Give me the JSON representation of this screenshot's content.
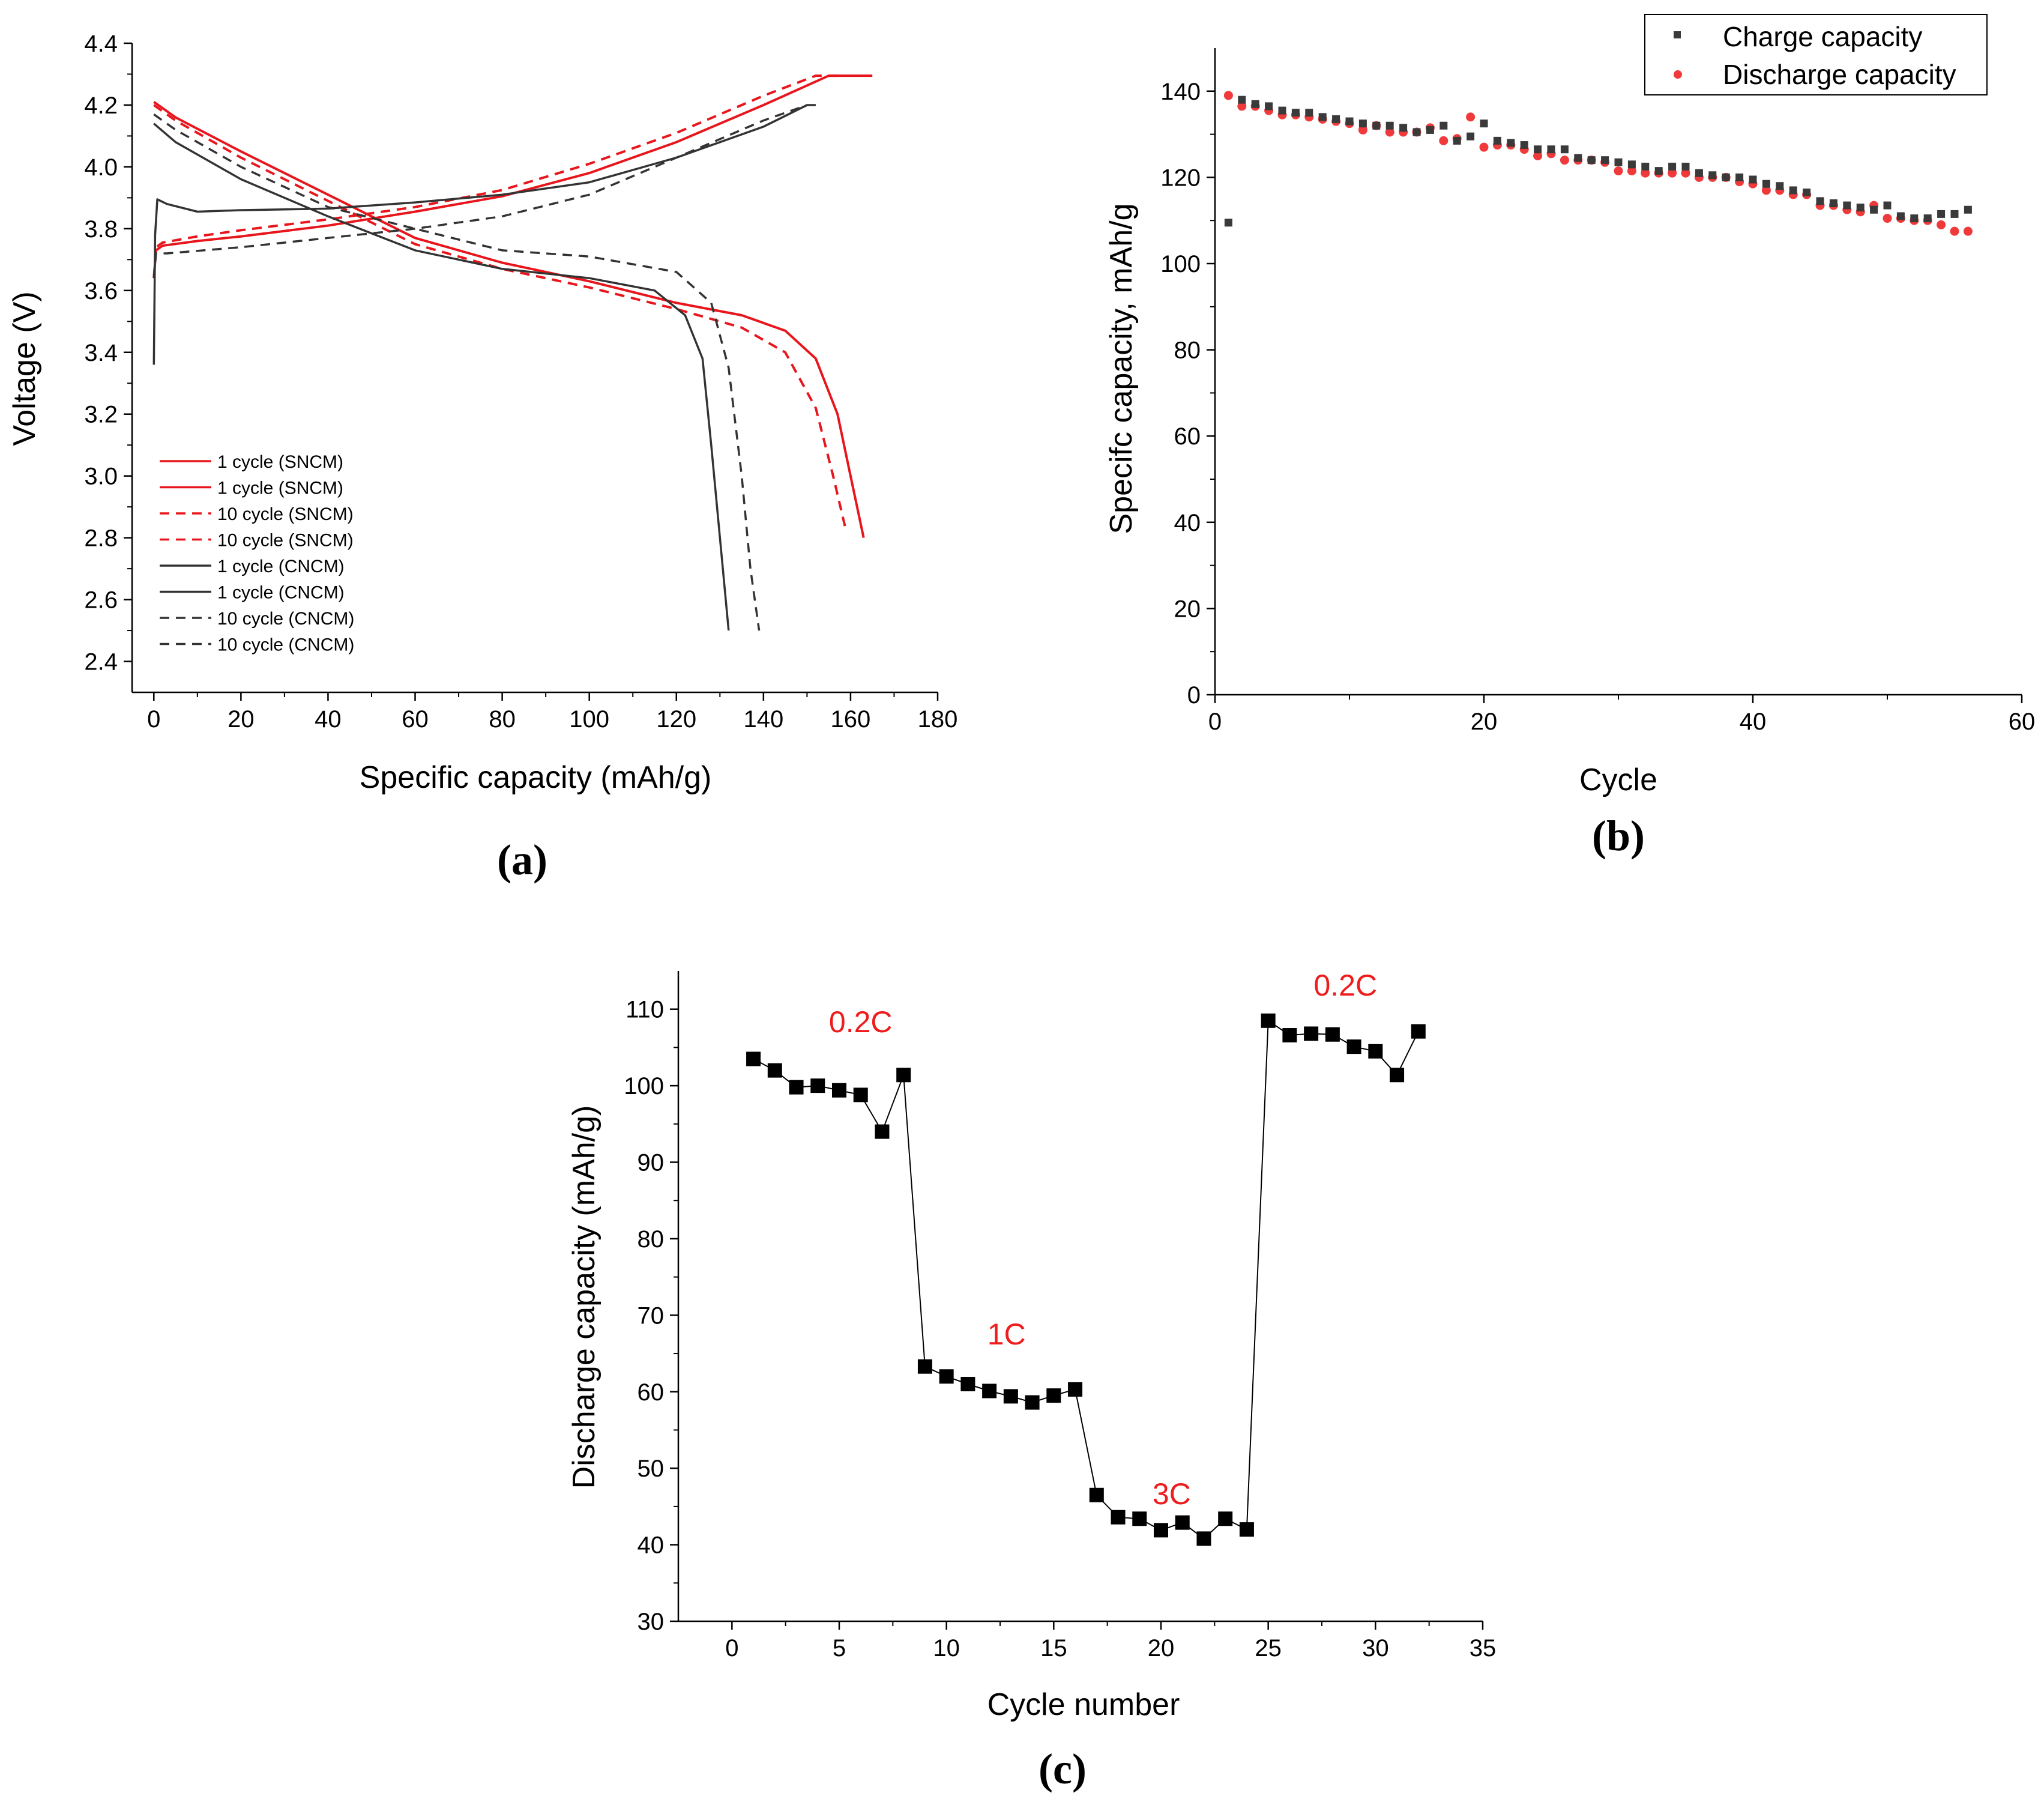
{
  "chart_data": [
    {
      "panel": "(a)",
      "type": "line",
      "xlabel": "Specific capacity (mAh/g)",
      "ylabel": "Voltage (V)",
      "xlim": [
        -5,
        180
      ],
      "ylim": [
        2.3,
        4.4
      ],
      "xticks": [
        0,
        20,
        40,
        60,
        80,
        100,
        120,
        140,
        160,
        180
      ],
      "xtick_labels": [
        "0",
        "20",
        "40",
        "60",
        "80",
        "100",
        "120",
        "140",
        "160",
        "180"
      ],
      "yticks": [
        2.4,
        2.6,
        2.8,
        3.0,
        3.2,
        3.4,
        3.6,
        3.8,
        4.0,
        4.2,
        4.4
      ],
      "ytick_labels": [
        "2.4",
        "2.6",
        "2.8",
        "3.0",
        "3.2",
        "3.4",
        "3.6",
        "3.8",
        "4.0",
        "4.2",
        "4.4"
      ],
      "legend": [
        {
          "label": "1 cycle (SNCM)",
          "color": "#e8161c",
          "dash": "solid"
        },
        {
          "label": "1 cycle (SNCM)",
          "color": "#e8161c",
          "dash": "solid"
        },
        {
          "label": "10 cycle (SNCM)",
          "color": "#e8161c",
          "dash": "dashed"
        },
        {
          "label": "10 cycle (SNCM)",
          "color": "#e8161c",
          "dash": "dashed"
        },
        {
          "label": "1 cycle (CNCM)",
          "color": "#333333",
          "dash": "solid"
        },
        {
          "label": "1 cycle (CNCM)",
          "color": "#333333",
          "dash": "solid"
        },
        {
          "label": "10 cycle (CNCM)",
          "color": "#333333",
          "dash": "dashed"
        },
        {
          "label": "10 cycle (CNCM)",
          "color": "#333333",
          "dash": "dashed"
        }
      ],
      "series": [
        {
          "name": "1 cycle (SNCM) charge",
          "color": "#e8161c",
          "dash": "solid",
          "points": [
            [
              0,
              3.64
            ],
            [
              0.5,
              3.73
            ],
            [
              2,
              3.745
            ],
            [
              10,
              3.76
            ],
            [
              20,
              3.775
            ],
            [
              40,
              3.81
            ],
            [
              60,
              3.855
            ],
            [
              80,
              3.905
            ],
            [
              100,
              3.98
            ],
            [
              120,
              4.08
            ],
            [
              140,
              4.2
            ],
            [
              155,
              4.295
            ],
            [
              165,
              4.295
            ]
          ]
        },
        {
          "name": "1 cycle (SNCM) discharge",
          "color": "#e8161c",
          "dash": "solid",
          "points": [
            [
              0,
              4.21
            ],
            [
              5,
              4.16
            ],
            [
              20,
              4.05
            ],
            [
              40,
              3.91
            ],
            [
              60,
              3.77
            ],
            [
              80,
              3.69
            ],
            [
              100,
              3.63
            ],
            [
              120,
              3.56
            ],
            [
              135,
              3.52
            ],
            [
              145,
              3.47
            ],
            [
              152,
              3.38
            ],
            [
              157,
              3.2
            ],
            [
              160,
              3.0
            ],
            [
              163,
              2.8
            ]
          ]
        },
        {
          "name": "10 cycle (SNCM) charge",
          "color": "#e8161c",
          "dash": "dashed",
          "points": [
            [
              0,
              3.64
            ],
            [
              0.5,
              3.74
            ],
            [
              2,
              3.755
            ],
            [
              10,
              3.775
            ],
            [
              20,
              3.795
            ],
            [
              40,
              3.83
            ],
            [
              60,
              3.87
            ],
            [
              80,
              3.925
            ],
            [
              100,
              4.01
            ],
            [
              120,
              4.11
            ],
            [
              140,
              4.23
            ],
            [
              152,
              4.295
            ],
            [
              157,
              4.295
            ]
          ]
        },
        {
          "name": "10 cycle (SNCM) discharge",
          "color": "#e8161c",
          "dash": "dashed",
          "points": [
            [
              0,
              4.2
            ],
            [
              5,
              4.15
            ],
            [
              20,
              4.03
            ],
            [
              40,
              3.89
            ],
            [
              60,
              3.75
            ],
            [
              80,
              3.67
            ],
            [
              100,
              3.61
            ],
            [
              120,
              3.54
            ],
            [
              135,
              3.48
            ],
            [
              145,
              3.4
            ],
            [
              152,
              3.22
            ],
            [
              156,
              3.0
            ],
            [
              159,
              2.82
            ]
          ]
        },
        {
          "name": "1 cycle (CNCM) charge",
          "color": "#333333",
          "dash": "solid",
          "points": [
            [
              0,
              3.36
            ],
            [
              0.3,
              3.78
            ],
            [
              0.8,
              3.895
            ],
            [
              3,
              3.88
            ],
            [
              10,
              3.855
            ],
            [
              20,
              3.86
            ],
            [
              40,
              3.865
            ],
            [
              60,
              3.885
            ],
            [
              80,
              3.91
            ],
            [
              100,
              3.95
            ],
            [
              120,
              4.03
            ],
            [
              140,
              4.13
            ],
            [
              150,
              4.2
            ],
            [
              152,
              4.2
            ]
          ]
        },
        {
          "name": "1 cycle (CNCM) discharge",
          "color": "#333333",
          "dash": "solid",
          "points": [
            [
              0,
              4.14
            ],
            [
              5,
              4.08
            ],
            [
              20,
              3.96
            ],
            [
              40,
              3.84
            ],
            [
              60,
              3.73
            ],
            [
              80,
              3.67
            ],
            [
              100,
              3.64
            ],
            [
              115,
              3.6
            ],
            [
              122,
              3.52
            ],
            [
              126,
              3.38
            ],
            [
              128,
              3.1
            ],
            [
              130,
              2.8
            ],
            [
              132,
              2.5
            ]
          ]
        },
        {
          "name": "10 cycle (CNCM) charge",
          "color": "#333333",
          "dash": "dashed",
          "points": [
            [
              0,
              3.64
            ],
            [
              0.5,
              3.72
            ],
            [
              3,
              3.72
            ],
            [
              20,
              3.74
            ],
            [
              40,
              3.77
            ],
            [
              60,
              3.8
            ],
            [
              80,
              3.84
            ],
            [
              100,
              3.91
            ],
            [
              120,
              4.03
            ],
            [
              140,
              4.15
            ],
            [
              150,
              4.2
            ]
          ]
        },
        {
          "name": "10 cycle (CNCM) discharge",
          "color": "#333333",
          "dash": "dashed",
          "points": [
            [
              0,
              4.17
            ],
            [
              5,
              4.12
            ],
            [
              20,
              4.0
            ],
            [
              40,
              3.87
            ],
            [
              60,
              3.8
            ],
            [
              80,
              3.73
            ],
            [
              100,
              3.71
            ],
            [
              120,
              3.66
            ],
            [
              128,
              3.56
            ],
            [
              132,
              3.35
            ],
            [
              135,
              3.0
            ],
            [
              137,
              2.7
            ],
            [
              139,
              2.5
            ]
          ]
        }
      ]
    },
    {
      "panel": "(b)",
      "type": "scatter",
      "xlabel": "Cycle",
      "ylabel": "Specifc capacity, mAh/g",
      "xlim": [
        0,
        60
      ],
      "ylim": [
        0,
        150
      ],
      "xticks": [
        0,
        20,
        40,
        60
      ],
      "xtick_labels": [
        "0",
        "20",
        "40",
        "60"
      ],
      "yticks": [
        0,
        20,
        40,
        60,
        80,
        100,
        120,
        140
      ],
      "ytick_labels": [
        "0",
        "20",
        "40",
        "60",
        "80",
        "100",
        "120",
        "140"
      ],
      "x": [
        1,
        2,
        3,
        4,
        5,
        6,
        7,
        8,
        9,
        10,
        11,
        12,
        13,
        14,
        15,
        16,
        17,
        18,
        19,
        20,
        21,
        22,
        23,
        24,
        25,
        26,
        27,
        28,
        29,
        30,
        31,
        32,
        33,
        34,
        35,
        36,
        37,
        38,
        39,
        40,
        41,
        42,
        43,
        44,
        45,
        46,
        47,
        48,
        49,
        50,
        51,
        52,
        53,
        54,
        55,
        56
      ],
      "series": [
        {
          "name": "Charge capacity",
          "marker": "square",
          "color": "#3a3a3a",
          "values": [
            109.5,
            138,
            137,
            136.5,
            135.5,
            135,
            135,
            134,
            133.5,
            133,
            132.5,
            132,
            132,
            131.5,
            130.5,
            131,
            132,
            128.5,
            129.5,
            132.5,
            128.5,
            128,
            127.5,
            126.5,
            126.5,
            126.5,
            124.5,
            124,
            124,
            123.5,
            123,
            122.5,
            121.5,
            122.5,
            122.5,
            121,
            120.5,
            120,
            120,
            119.5,
            118.5,
            118,
            117,
            116.5,
            114.5,
            114,
            113.5,
            113,
            112.5,
            113.5,
            111,
            110.5,
            110.5,
            111.5,
            111.5,
            112.5
          ]
        },
        {
          "name": "Discharge capacity",
          "marker": "circle",
          "color": "#f0393a",
          "values": [
            139,
            136.5,
            136.5,
            135.5,
            134.5,
            134.5,
            134,
            133.5,
            133,
            132.5,
            131,
            132,
            130.5,
            130.5,
            130.5,
            131.5,
            128.5,
            129,
            134,
            127,
            127.5,
            127.5,
            126.5,
            125,
            125.5,
            124,
            124,
            124,
            123.5,
            121.5,
            121.5,
            121,
            121,
            121,
            121,
            120,
            120,
            120,
            119,
            118.5,
            117,
            117,
            116,
            116,
            113.5,
            113.5,
            112.5,
            112,
            113.5,
            110.5,
            110.5,
            110,
            110,
            109,
            107.5,
            107.5
          ]
        }
      ],
      "legend": [
        "Charge capacity",
        "Discharge capacity"
      ]
    },
    {
      "panel": "(c)",
      "type": "line",
      "xlabel": "Cycle number",
      "ylabel": "Discharge capacity (mAh/g)",
      "xlim": [
        -2.5,
        35
      ],
      "ylim": [
        30,
        115
      ],
      "xticks": [
        0,
        5,
        10,
        15,
        20,
        25,
        30,
        35
      ],
      "xtick_labels": [
        "0",
        "5",
        "10",
        "15",
        "20",
        "25",
        "30",
        "35"
      ],
      "yticks": [
        30,
        40,
        50,
        60,
        70,
        80,
        90,
        100,
        110
      ],
      "ytick_labels": [
        "30",
        "40",
        "50",
        "60",
        "70",
        "80",
        "90",
        "100",
        "110"
      ],
      "series": [
        {
          "name": "Discharge capacity",
          "marker": "square",
          "color": "#000000",
          "x": [
            1,
            2,
            3,
            4,
            5,
            6,
            7,
            8,
            9,
            10,
            11,
            12,
            13,
            14,
            15,
            16,
            17,
            18,
            19,
            20,
            21,
            22,
            23,
            24,
            25,
            26,
            27,
            28,
            29,
            30,
            31,
            32
          ],
          "values": [
            103.5,
            102,
            99.8,
            100,
            99.4,
            98.8,
            94,
            101.4,
            63.3,
            62,
            61,
            60.1,
            59.4,
            58.6,
            59.5,
            60.3,
            46.5,
            43.6,
            43.4,
            41.9,
            42.9,
            40.8,
            43.4,
            42,
            108.5,
            106.6,
            106.8,
            106.7,
            105.1,
            104.5,
            101.4,
            107.1
          ]
        }
      ],
      "annotations": [
        {
          "text": "0.2C",
          "x": 6,
          "y": 107
        },
        {
          "text": "1C",
          "x": 12.8,
          "y": 66.2
        },
        {
          "text": "3C",
          "x": 20.5,
          "y": 45.3
        },
        {
          "text": "0.2C",
          "x": 28.6,
          "y": 111.8
        }
      ]
    }
  ],
  "panel_labels": {
    "a": "(a)",
    "b": "(b)",
    "c": "(c)"
  }
}
